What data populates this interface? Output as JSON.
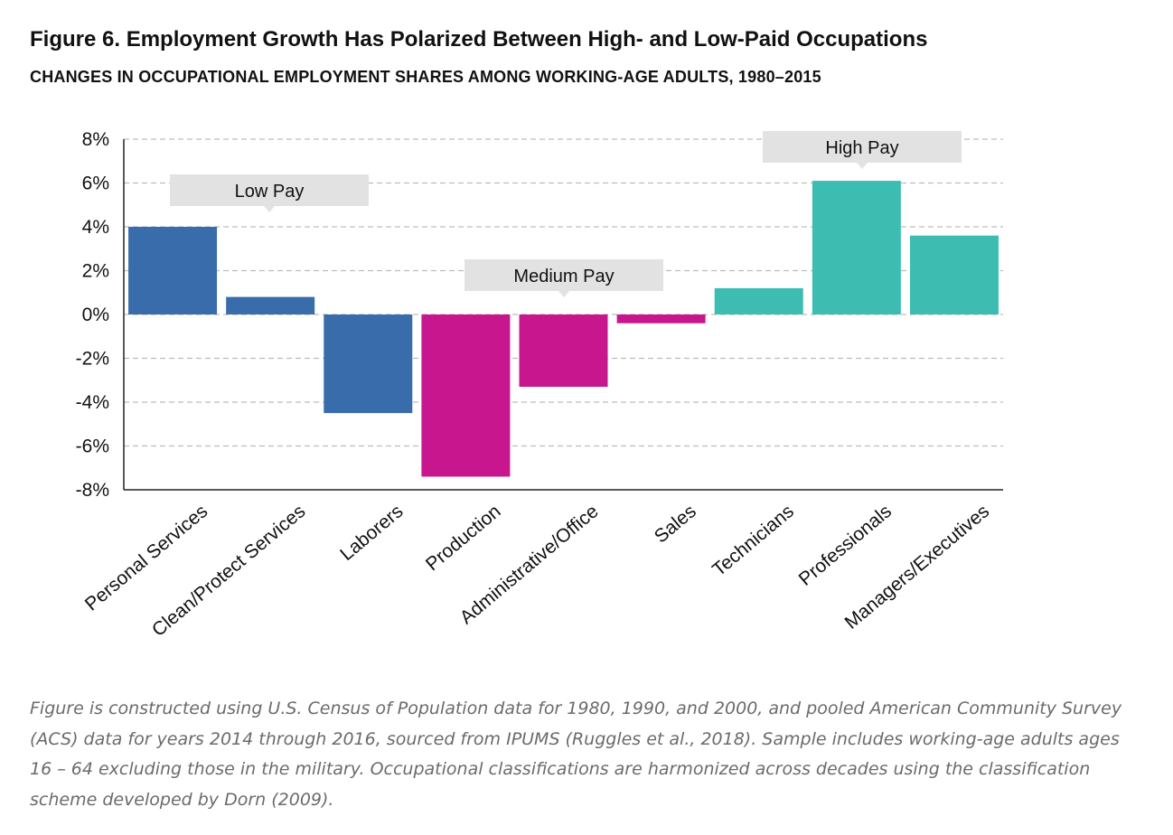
{
  "figure": {
    "title": "Figure 6. Employment Growth Has Polarized Between High- and Low-Paid Occupations",
    "subtitle": "CHANGES IN OCCUPATIONAL EMPLOYMENT SHARES AMONG WORKING-AGE ADULTS, 1980–2015",
    "note": "Figure is constructed using U.S. Census of Population data for 1980, 1990, and 2000, and pooled American Community Survey (ACS) data for years 2014 through 2016, sourced from IPUMS (Ruggles et al., 2018). Sample includes working-age adults ages 16 – 64 excluding those in the military. Occupational classifications are harmonized across decades using the classification scheme developed by Dorn (2009)."
  },
  "chart_data": {
    "type": "bar",
    "categories": [
      "Personal Services",
      "Clean/Protect Services",
      "Laborers",
      "Production",
      "Administrative/Office",
      "Sales",
      "Technicians",
      "Professionals",
      "Managers/Executives"
    ],
    "values": [
      4.0,
      0.8,
      -4.5,
      -7.4,
      -3.3,
      -0.4,
      1.2,
      6.1,
      3.6
    ],
    "group": [
      "Low Pay",
      "Low Pay",
      "Low Pay",
      "Medium Pay",
      "Medium Pay",
      "Medium Pay",
      "High Pay",
      "High Pay",
      "High Pay"
    ],
    "ylim": [
      -8,
      8
    ],
    "yticks": [
      8,
      6,
      4,
      2,
      0,
      -2,
      -4,
      -6,
      -8
    ],
    "ytick_labels": [
      "8%",
      "6%",
      "4%",
      "2%",
      "0%",
      "-2%",
      "-4%",
      "-6%",
      "-8%"
    ],
    "grid": true,
    "annotations": [
      {
        "text": "Low Pay",
        "group": "Low Pay"
      },
      {
        "text": "Medium Pay",
        "group": "Medium Pay"
      },
      {
        "text": "High Pay",
        "group": "High Pay"
      }
    ],
    "colors": {
      "Low Pay": "#396cab",
      "Medium Pay": "#c8168e",
      "High Pay": "#3dbdb1"
    },
    "callout_color": "#e2e2e2",
    "grid_color": "#bdbdbd"
  }
}
